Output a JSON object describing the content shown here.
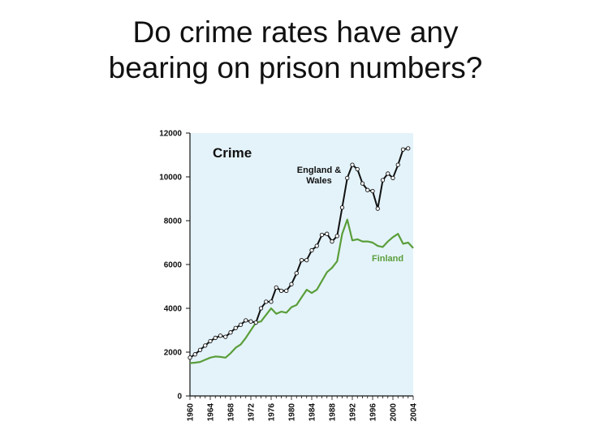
{
  "slide": {
    "title_line1": "Do crime rates have any",
    "title_line2": "bearing on prison numbers?"
  },
  "chart_data": {
    "type": "line",
    "title": "Crime",
    "xlabel": "",
    "ylabel": "",
    "xlim": [
      1960,
      2004
    ],
    "ylim": [
      0,
      12000
    ],
    "x_ticks": [
      "1960",
      "1964",
      "1968",
      "1972",
      "1976",
      "1980",
      "1984",
      "1988",
      "1992",
      "1996",
      "2000",
      "2004"
    ],
    "y_ticks": [
      "0",
      "2000",
      "4000",
      "6000",
      "8000",
      "10000",
      "12000"
    ],
    "grid": false,
    "plot_background": "#e4f3fa",
    "series": [
      {
        "name": "England & Wales",
        "label_lines": [
          "England &",
          "Wales"
        ],
        "color": "#111111",
        "markers": true,
        "x": [
          1960,
          1961,
          1962,
          1963,
          1964,
          1965,
          1966,
          1967,
          1968,
          1969,
          1970,
          1971,
          1972,
          1973,
          1974,
          1975,
          1976,
          1977,
          1978,
          1979,
          1980,
          1981,
          1982,
          1983,
          1984,
          1985,
          1986,
          1987,
          1988,
          1989,
          1990,
          1991,
          1992,
          1993,
          1994,
          1995,
          1996,
          1997,
          1998,
          1999,
          2000,
          2001,
          2002,
          2003
        ],
        "y": [
          1750,
          1900,
          2100,
          2300,
          2500,
          2650,
          2750,
          2700,
          2900,
          3100,
          3250,
          3450,
          3400,
          3350,
          4000,
          4300,
          4300,
          4950,
          4800,
          4800,
          5100,
          5600,
          6200,
          6200,
          6650,
          6850,
          7350,
          7400,
          7050,
          7300,
          8600,
          9950,
          10550,
          10350,
          9700,
          9400,
          9350,
          8550,
          9850,
          10150,
          9950,
          10550,
          11250,
          11300
        ]
      },
      {
        "name": "Finland",
        "label_lines": [
          "Finland"
        ],
        "color": "#5a9e3a",
        "markers": false,
        "x": [
          1960,
          1961,
          1962,
          1963,
          1964,
          1965,
          1966,
          1967,
          1968,
          1969,
          1970,
          1971,
          1972,
          1973,
          1974,
          1975,
          1976,
          1977,
          1978,
          1979,
          1980,
          1981,
          1982,
          1983,
          1984,
          1985,
          1986,
          1987,
          1988,
          1989,
          1990,
          1991,
          1992,
          1993,
          1994,
          1995,
          1996,
          1997,
          1998,
          1999,
          2000,
          2001,
          2002,
          2003,
          2004
        ],
        "y": [
          1500,
          1520,
          1550,
          1650,
          1750,
          1800,
          1780,
          1750,
          1950,
          2200,
          2350,
          2650,
          3000,
          3350,
          3400,
          3700,
          4000,
          3750,
          3850,
          3800,
          4050,
          4150,
          4500,
          4850,
          4700,
          4850,
          5250,
          5650,
          5850,
          6150,
          7400,
          8050,
          7100,
          7150,
          7050,
          7050,
          7000,
          6850,
          6800,
          7050,
          7250,
          7400,
          6950,
          7000,
          6750
        ]
      }
    ]
  }
}
